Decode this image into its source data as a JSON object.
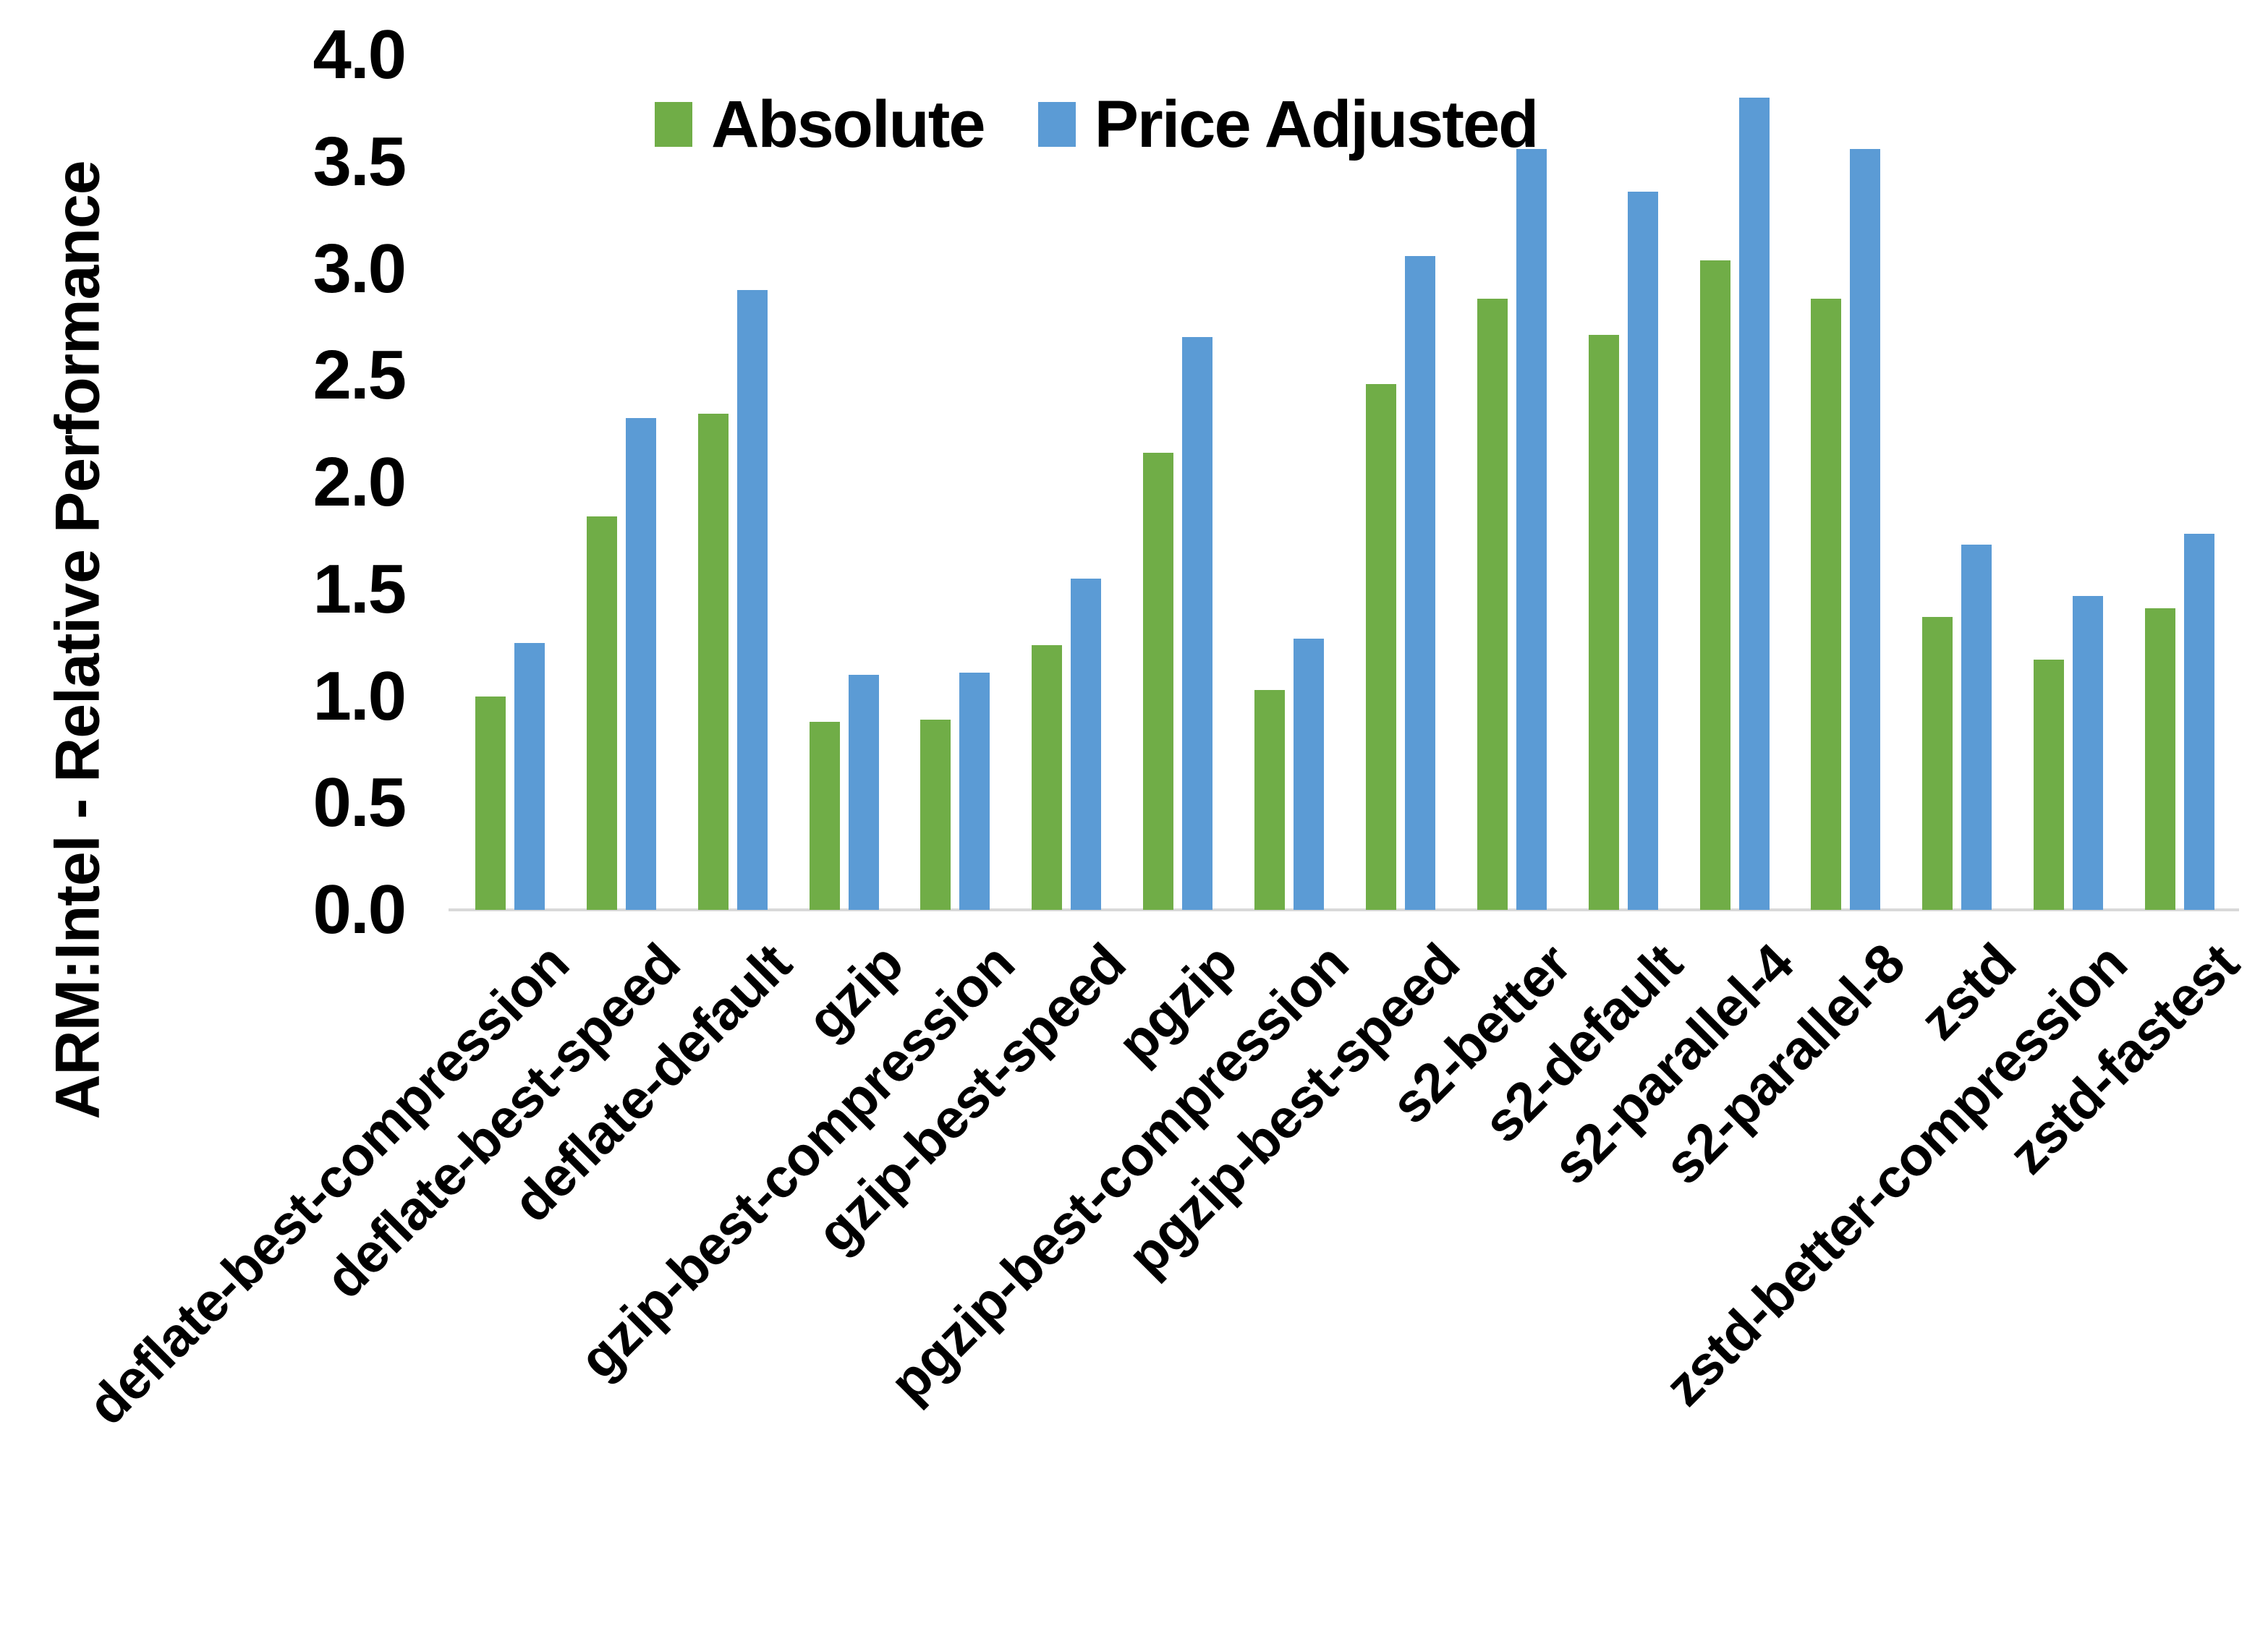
{
  "chart_data": {
    "type": "bar",
    "title": "",
    "xlabel": "",
    "ylabel": "ARM:Intel - Relative Performance",
    "ylim": [
      0.0,
      4.0
    ],
    "ytick_step": 0.5,
    "yticks": [
      "4.0",
      "3.5",
      "3.0",
      "2.5",
      "2.0",
      "1.5",
      "1.0",
      "0.5",
      "0.0"
    ],
    "grid": false,
    "legend_position": "top-center",
    "categories": [
      "deflate-best-compression",
      "deflate-best-speed",
      "deflate-default",
      "gzip",
      "gzip-best-compression",
      "gzip-best-speed",
      "pgzip",
      "pgzip-best-compression",
      "pgzip-best-speed",
      "s2-better",
      "s2-default",
      "s2-parallel-4",
      "s2-parallel-8",
      "zstd",
      "zstd-better-compression",
      "zstd-fastest"
    ],
    "series": [
      {
        "name": "Absolute",
        "color": "#70AD47",
        "values": [
          1.0,
          1.84,
          2.32,
          0.88,
          0.89,
          1.24,
          2.14,
          1.03,
          2.46,
          2.86,
          2.69,
          3.04,
          2.86,
          1.37,
          1.17,
          1.41
        ]
      },
      {
        "name": "Price Adjusted",
        "color": "#5B9BD5",
        "values": [
          1.25,
          2.3,
          2.9,
          1.1,
          1.11,
          1.55,
          2.68,
          1.27,
          3.06,
          3.56,
          3.36,
          3.8,
          3.56,
          1.71,
          1.47,
          1.76
        ]
      }
    ]
  },
  "colors": {
    "background": "#FFFFFF",
    "axis_line": "#D9D9D9",
    "text": "#000000",
    "frame_border": "#000000"
  }
}
